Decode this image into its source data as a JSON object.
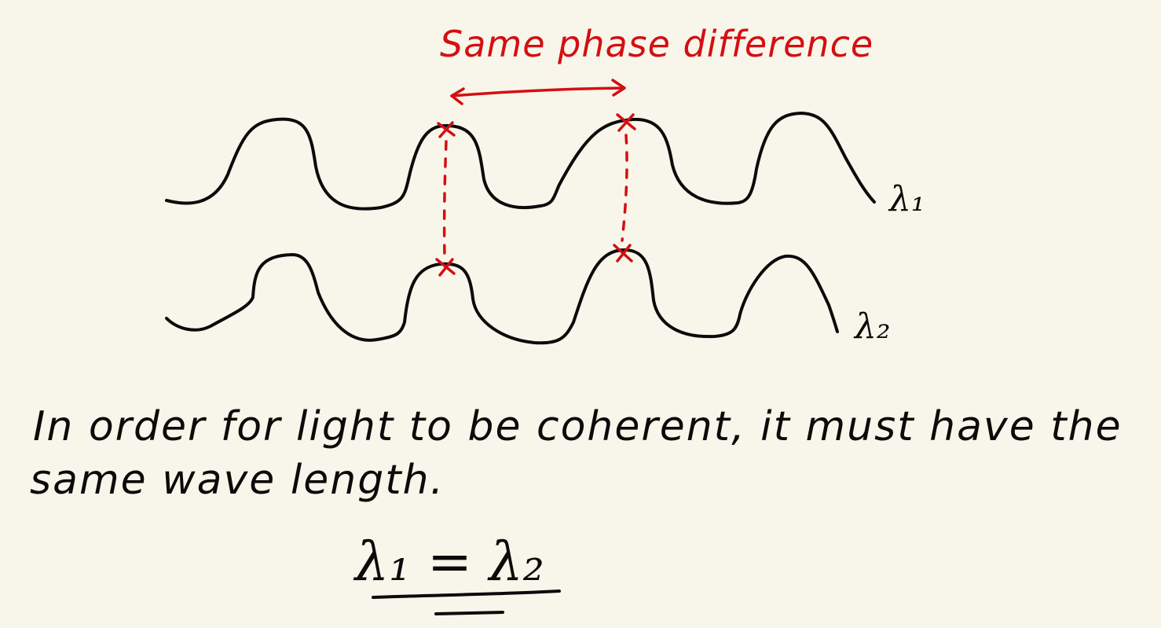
{
  "annotation": {
    "title": "Same phase difference",
    "color": "#d40f12"
  },
  "waves": {
    "wave1_label": "λ₁",
    "wave2_label": "λ₂",
    "ink_color": "#0b0b0b"
  },
  "text": {
    "line1": "In order for light to be coherent, it must have the",
    "line2": "same wave length.",
    "equation": "λ₁ = λ₂"
  }
}
